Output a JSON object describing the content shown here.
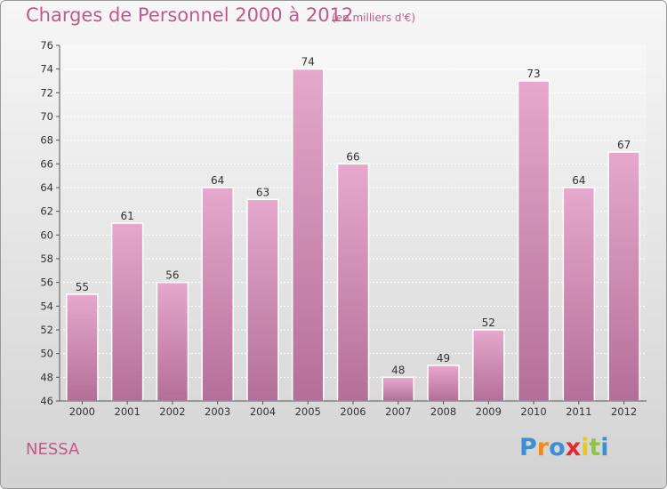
{
  "title": "Charges de Personnel 2000 à 2012",
  "subtitle": "(en milliers d'€)",
  "commune": "NESSA",
  "brand": {
    "letters": [
      "P",
      "r",
      "o",
      "x",
      "i",
      "t",
      "i"
    ],
    "colors": [
      "#3a8fd6",
      "#f08a1c",
      "#3a8fd6",
      "#e8262f",
      "#f0c419",
      "#8dc63f",
      "#3a8fd6"
    ]
  },
  "colors": {
    "text_accent": "#c05a8a",
    "bar_light": "#e6a8cd",
    "bar_dark": "#b46f98"
  },
  "chart_data": {
    "type": "bar",
    "title": "Charges de Personnel 2000 à 2012",
    "subtitle": "(en milliers d'€)",
    "categories": [
      "2000",
      "2001",
      "2002",
      "2003",
      "2004",
      "2005",
      "2006",
      "2007",
      "2008",
      "2009",
      "2010",
      "2011",
      "2012"
    ],
    "values": [
      55,
      61,
      56,
      64,
      63,
      74,
      66,
      48,
      49,
      52,
      73,
      64,
      67
    ],
    "ylim": [
      46,
      76
    ],
    "yticks": [
      46,
      48,
      50,
      52,
      54,
      56,
      58,
      60,
      62,
      64,
      66,
      68,
      70,
      72,
      74,
      76
    ],
    "grid": true,
    "data_labels": true
  }
}
